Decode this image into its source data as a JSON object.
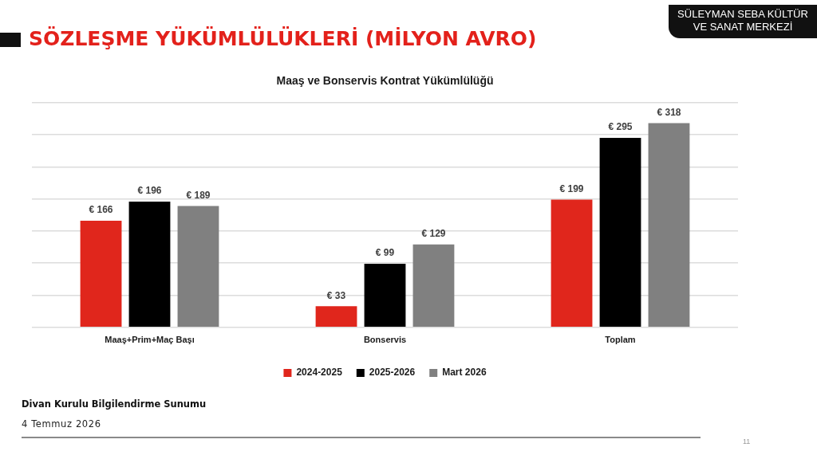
{
  "chart_data": {
    "type": "bar",
    "title": "SÖZLEŞME YÜKÜMLÜLÜKLERİ (MİLYON AVRO)",
    "subtitle": "Maaş ve Bonservis Kontrat Yükümlülüğü",
    "categories": [
      "Maaş+Prim+Maç Başı",
      "Bonservis",
      "Toplam"
    ],
    "series": [
      {
        "name": "2024-2025",
        "color": "#e0261c",
        "values": [
          166,
          33,
          199
        ],
        "value_labels": [
          "€ 166",
          "€ 33",
          "€ 199"
        ]
      },
      {
        "name": "2025-2026",
        "color": "#000000",
        "values": [
          196,
          99,
          295
        ],
        "value_labels": [
          "€ 196",
          "€ 99",
          "€ 295"
        ]
      },
      {
        "name": "Mart 2026",
        "color": "#808080",
        "values": [
          189,
          129,
          318
        ],
        "value_labels": [
          "€ 189",
          "€ 129",
          "€ 318"
        ]
      }
    ],
    "ylim": [
      0,
      350
    ],
    "yticks": [
      {
        "value": 0,
        "label": null
      },
      {
        "value": 50,
        "label": null
      },
      {
        "value": 100,
        "label": null
      },
      {
        "value": 150,
        "label": null
      },
      {
        "value": 200,
        "label": null
      },
      {
        "value": 250,
        "label": null
      },
      {
        "value": 300,
        "label": null
      },
      {
        "value": 350,
        "label": null
      }
    ],
    "grid": "y",
    "legend": "bottom",
    "tick_labels": "x",
    "annotations": [
      "SÜLEYMAN SEBA KÜLTÜR VE SANAT MERKEZİ",
      "Divan Kurulu Bilgilendirme Sunumu",
      "4 Temmuz 2026",
      "11"
    ]
  }
}
